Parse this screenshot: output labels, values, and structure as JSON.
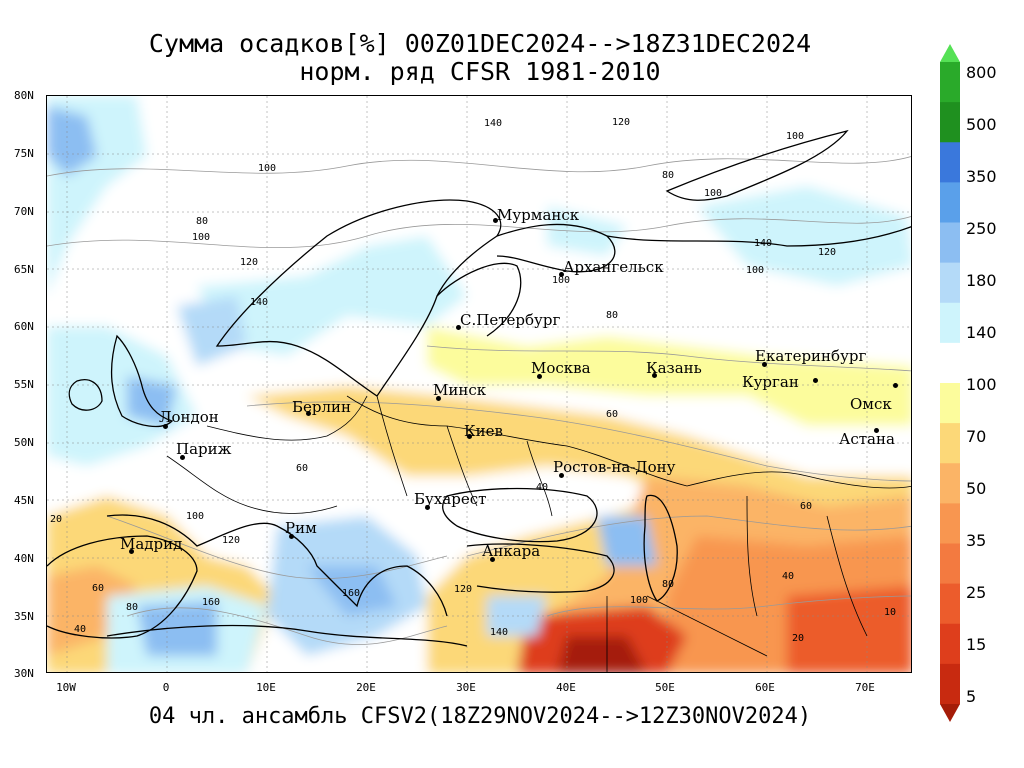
{
  "title_line1": "Сумма осадков[%] 00Z01DEC2024-->18Z31DEC2024",
  "title_line2": "норм. ряд CFSR 1981-2010",
  "footer": "04 чл. ансамбль CFSV2(18Z29NOV2024-->12Z30NOV2024)",
  "lat_labels": [
    "80N",
    "75N",
    "70N",
    "65N",
    "60N",
    "55N",
    "50N",
    "45N",
    "40N",
    "35N",
    "30N"
  ],
  "lon_labels": [
    "10W",
    "0",
    "10E",
    "20E",
    "30E",
    "40E",
    "50E",
    "60E",
    "70E"
  ],
  "cities": [
    "Мурманск",
    "Архангельск",
    "С.Петербург",
    "Москва",
    "Казань",
    "Екатеринбург",
    "Курган",
    "Омск",
    "Астана",
    "Минск",
    "Берлин",
    "Лондон",
    "Париж",
    "Киев",
    "Ростов-на-Дону",
    "Бухарест",
    "Рим",
    "Мадрид",
    "Анкара"
  ],
  "colorbar_labels": [
    "800",
    "500",
    "350",
    "250",
    "180",
    "140",
    "100",
    "70",
    "50",
    "35",
    "25",
    "15",
    "5"
  ],
  "colorbar_colors": [
    "#55e155",
    "#2aaa2a",
    "#1f901f",
    "#3a78dc",
    "#5aa0ea",
    "#8cbef2",
    "#b4daf8",
    "#cef4fc",
    "#ffffff",
    "#fcfc9c",
    "#fcd878",
    "#fbb466",
    "#f89650",
    "#f37a40",
    "#ec5c2c",
    "#de3e1c",
    "#c82a10",
    "#a51c08"
  ],
  "contour_labels": [
    "140",
    "120",
    "100",
    "80",
    "100",
    "100",
    "80",
    "100",
    "140",
    "120",
    "100",
    "120",
    "140",
    "100",
    "80",
    "60",
    "40",
    "20",
    "60",
    "80",
    "100",
    "120",
    "160",
    "60",
    "40",
    "20",
    "10",
    "40",
    "60",
    "80",
    "100",
    "120",
    "140",
    "160"
  ]
}
